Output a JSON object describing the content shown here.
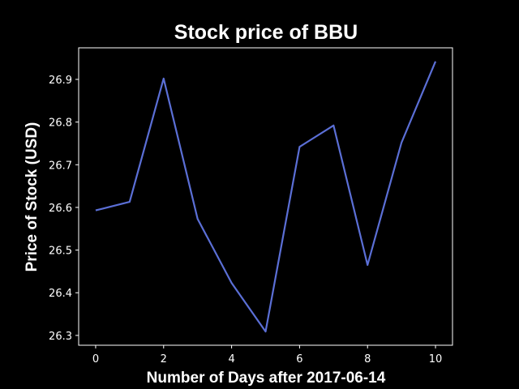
{
  "chart_data": {
    "type": "line",
    "title": "Stock price of BBU",
    "xlabel": "Number of Days after 2017-06-14",
    "ylabel": "Price of Stock (USD)",
    "x": [
      0,
      1,
      2,
      3,
      4,
      5,
      6,
      7,
      8,
      9,
      10
    ],
    "series": [
      {
        "values": [
          26.593,
          26.613,
          26.902,
          26.573,
          26.423,
          26.309,
          26.742,
          26.792,
          26.465,
          26.752,
          26.942
        ],
        "color": "#5b6fd6"
      }
    ],
    "xticks": [
      0,
      2,
      4,
      6,
      8,
      10
    ],
    "yticks": [
      26.3,
      26.4,
      26.5,
      26.6,
      26.7,
      26.8,
      26.9
    ],
    "xlim": [
      -0.5,
      10.5
    ],
    "ylim": [
      26.277,
      26.974
    ],
    "grid": false,
    "colors": {
      "background": "#000000",
      "axes": "#ffffff",
      "text": "#ffffff"
    }
  }
}
